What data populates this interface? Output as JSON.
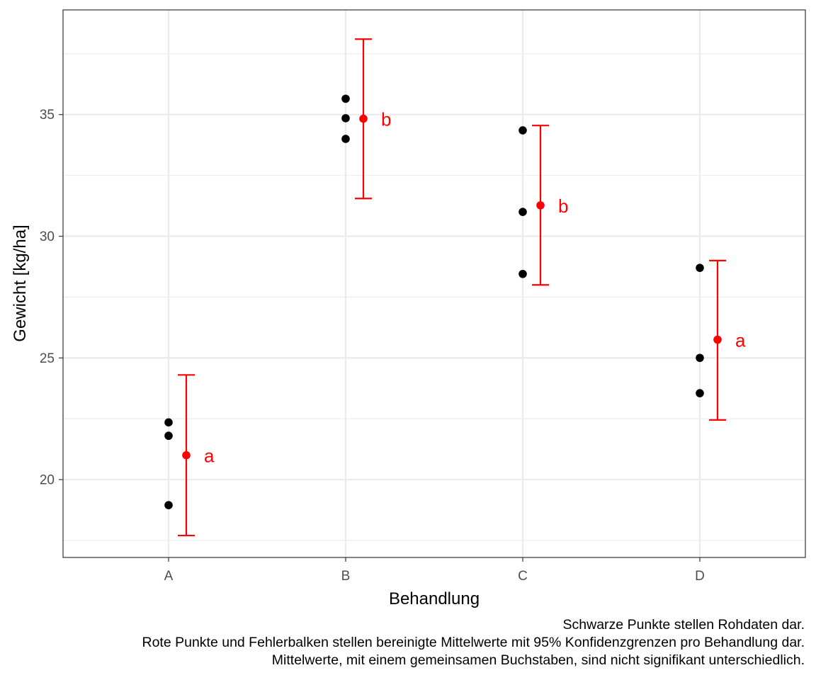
{
  "chart_data": {
    "type": "scatter",
    "xlabel": "Behandlung",
    "ylabel": "Gewicht [kg/ha]",
    "categories": [
      "A",
      "B",
      "C",
      "D"
    ],
    "ylim": [
      16.8,
      39.3
    ],
    "yticks": [
      20,
      25,
      30,
      35
    ],
    "grid": true,
    "raw_points": [
      {
        "category": "A",
        "values": [
          22.35,
          21.8,
          18.95
        ]
      },
      {
        "category": "B",
        "values": [
          35.65,
          34.85,
          34.0
        ]
      },
      {
        "category": "C",
        "values": [
          34.35,
          31.0,
          28.45
        ]
      },
      {
        "category": "D",
        "values": [
          28.7,
          25.0,
          23.55
        ]
      }
    ],
    "adjusted_means": [
      {
        "category": "A",
        "mean": 21.0,
        "lower": 17.7,
        "upper": 24.3,
        "letter": "a"
      },
      {
        "category": "B",
        "mean": 34.83,
        "lower": 31.55,
        "upper": 38.1,
        "letter": "b"
      },
      {
        "category": "C",
        "mean": 31.27,
        "lower": 28.0,
        "upper": 34.55,
        "letter": "b"
      },
      {
        "category": "D",
        "mean": 25.75,
        "lower": 22.45,
        "upper": 29.0,
        "letter": "a"
      }
    ],
    "colors": {
      "raw": "#000000",
      "mean": "#ff0000",
      "grid": "#ebebeb",
      "panel_border": "#333333"
    }
  },
  "caption": {
    "line1": "Schwarze Punkte stellen Rohdaten dar.",
    "line2": "Rote Punkte und Fehlerbalken stellen bereinigte Mittelwerte mit 95% Konfidenzgrenzen pro Behandlung dar.",
    "line3": "Mittelwerte, mit einem gemeinsamen Buchstaben, sind nicht signifikant unterschiedlich."
  }
}
